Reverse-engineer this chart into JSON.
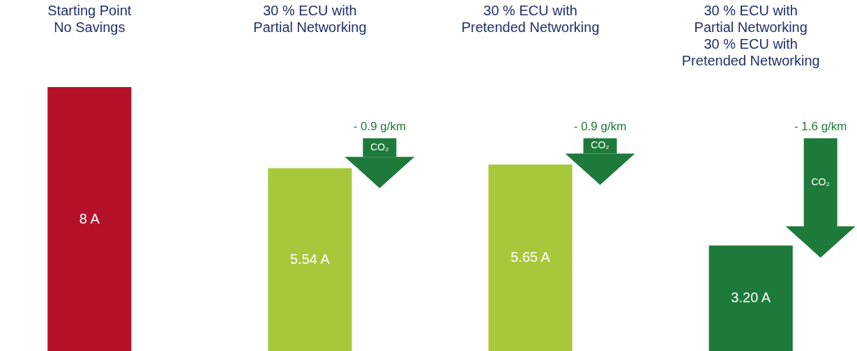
{
  "chart_data": {
    "type": "bar",
    "categories": [
      "Starting Point\nNo Savings",
      "30 % ECU with\nPartial Networking",
      "30 % ECU with\nPretended Networking",
      "30 % ECU with\nPartial Networking\n30 % ECU with\nPretended Networking"
    ],
    "values": [
      8,
      5.54,
      5.65,
      3.2
    ],
    "colors": [
      "#b5122a",
      "#a8c83c",
      "#a8c83c",
      "#1e7a3a"
    ],
    "value_labels": [
      "8 A",
      "5.54 A",
      "5.65 A",
      "3.20 A"
    ],
    "annotations": [
      "- 0.9 g/km",
      "CO₂",
      "- 0.9 g/km",
      "CO₂",
      "- 1.6 g/km",
      "CO₂"
    ],
    "grid": false
  }
}
